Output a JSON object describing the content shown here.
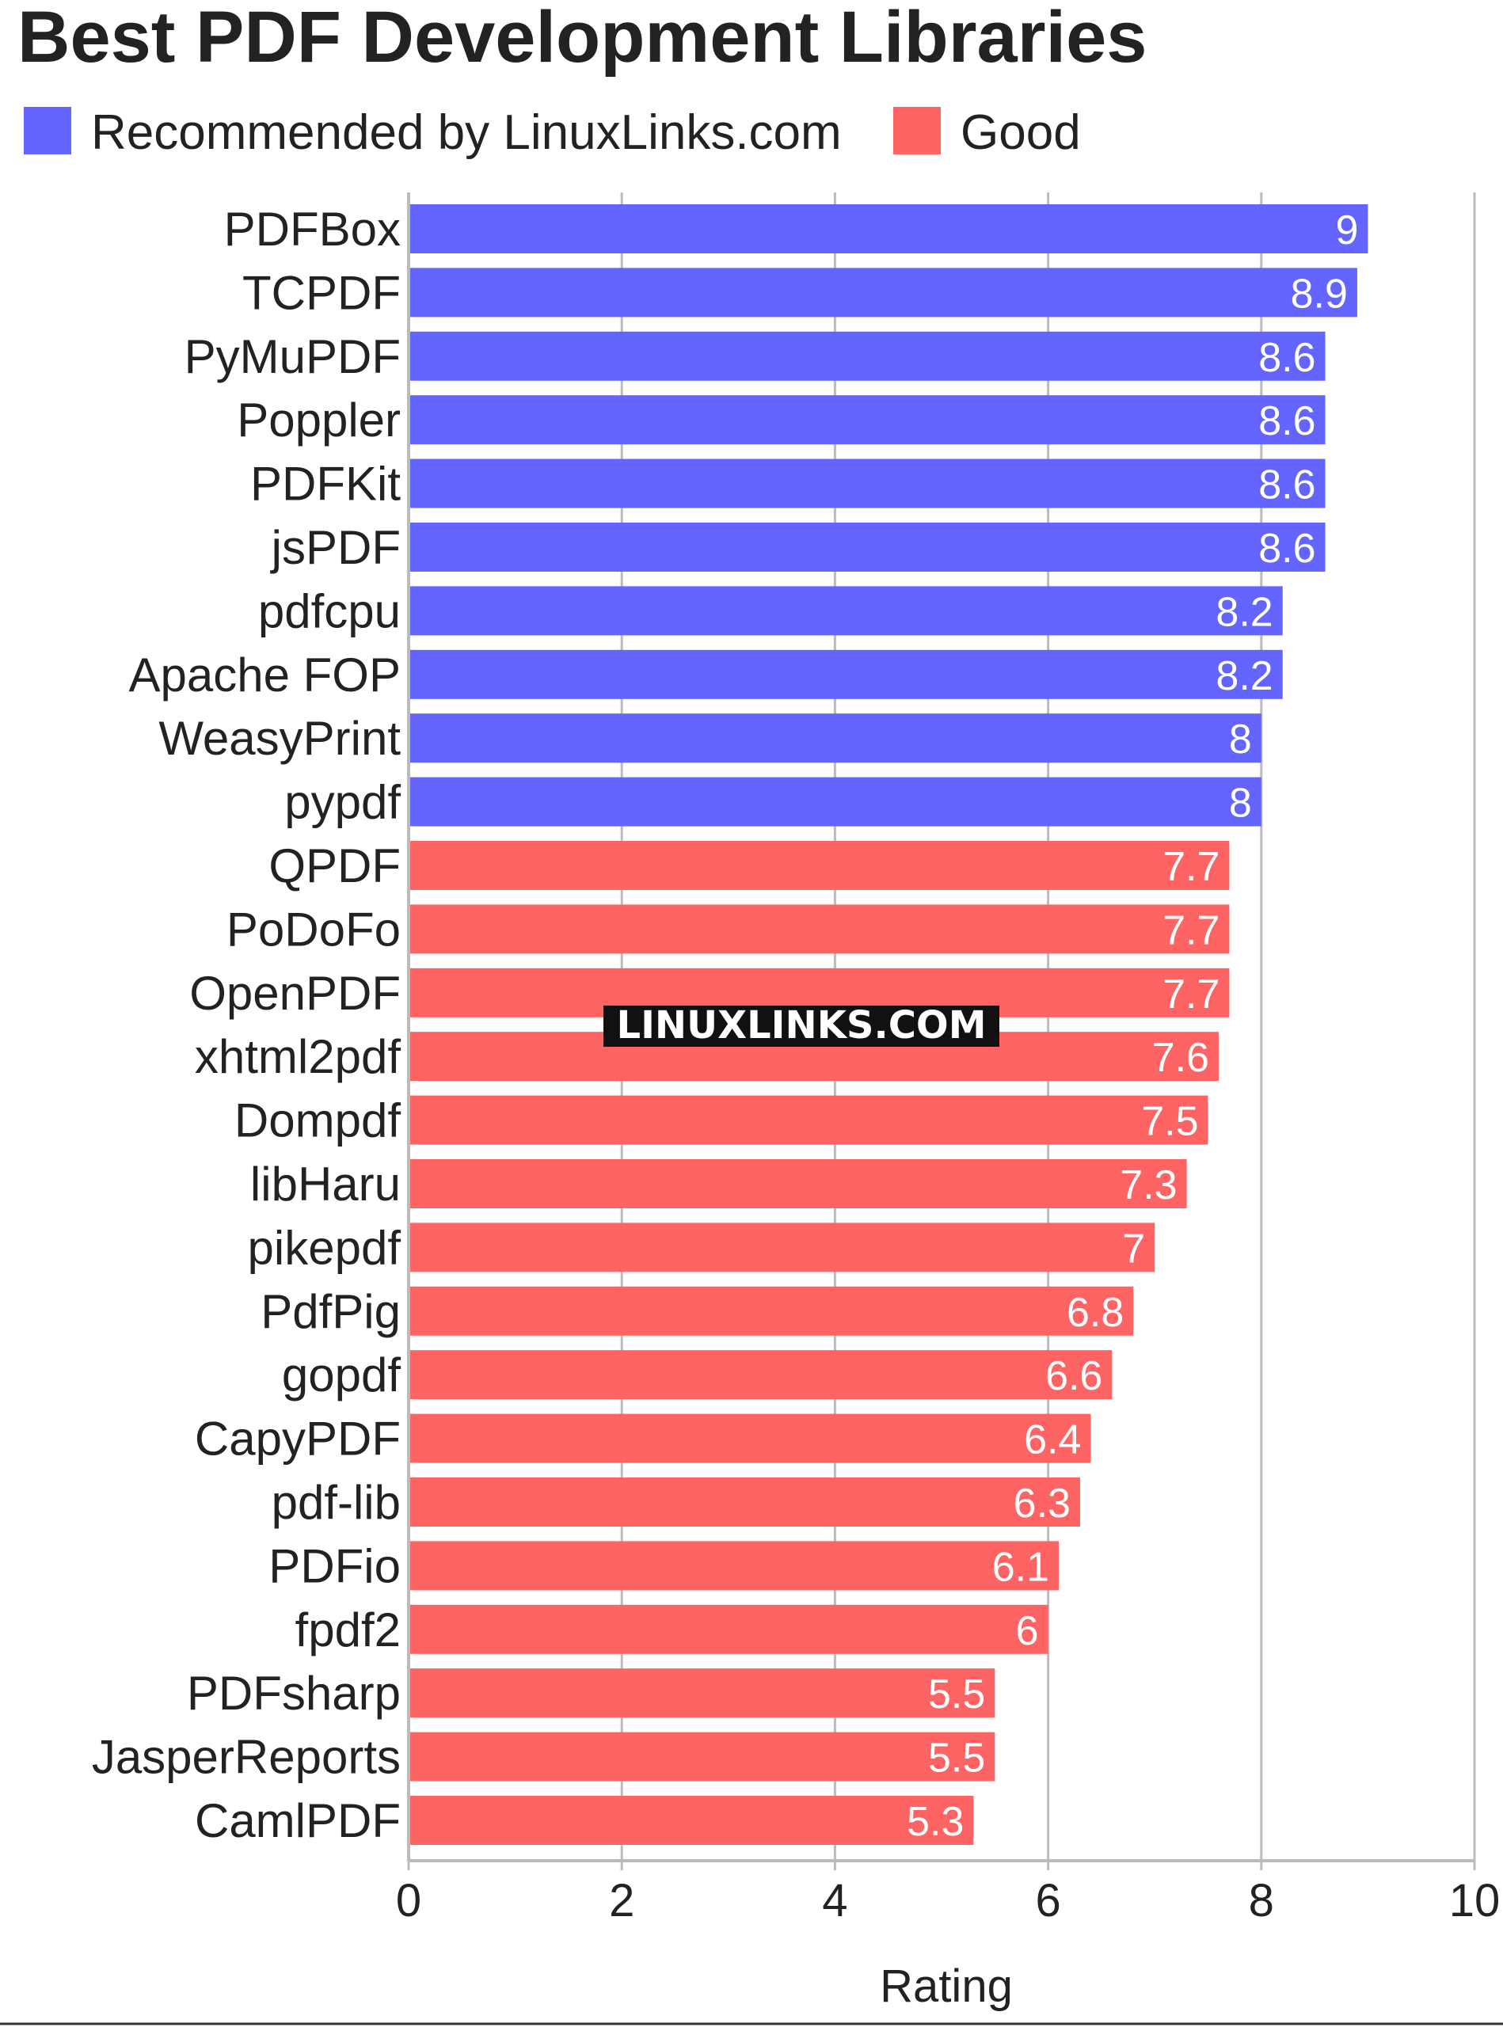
{
  "chart_data": {
    "type": "bar",
    "orientation": "horizontal",
    "title": "Best PDF Development Libraries",
    "xlabel": "Rating",
    "ylabel": "",
    "xlim": [
      0,
      10
    ],
    "ticks": [
      "0",
      "2",
      "4",
      "6",
      "8",
      "10"
    ],
    "grid": true,
    "legend_position": "top-left",
    "watermark": "LINUXLINKS.COM",
    "series": [
      {
        "name": "Recommended by LinuxLinks.com",
        "color": "#6464ff"
      },
      {
        "name": "Good",
        "color": "#ff6464"
      }
    ],
    "categories": [
      "PDFBox",
      "TCPDF",
      "PyMuPDF",
      "Poppler",
      "PDFKit",
      "jsPDF",
      "pdfcpu",
      "Apache FOP",
      "WeasyPrint",
      "pypdf",
      "QPDF",
      "PoDoFo",
      "OpenPDF",
      "xhtml2pdf",
      "Dompdf",
      "libHaru",
      "pikepdf",
      "PdfPig",
      "gopdf",
      "CapyPDF",
      "pdf-lib",
      "PDFio",
      "fpdf2",
      "PDFsharp",
      "JasperReports",
      "CamlPDF"
    ],
    "values": [
      9,
      8.9,
      8.6,
      8.6,
      8.6,
      8.6,
      8.2,
      8.2,
      8,
      8,
      7.7,
      7.7,
      7.7,
      7.6,
      7.5,
      7.3,
      7,
      6.8,
      6.6,
      6.4,
      6.3,
      6.1,
      6,
      5.5,
      5.5,
      5.3
    ],
    "value_labels": [
      "9",
      "8.9",
      "8.6",
      "8.6",
      "8.6",
      "8.6",
      "8.2",
      "8.2",
      "8",
      "8",
      "7.7",
      "7.7",
      "7.7",
      "7.6",
      "7.5",
      "7.3",
      "7",
      "6.8",
      "6.6",
      "6.4",
      "6.3",
      "6.1",
      "6",
      "5.5",
      "5.5",
      "5.3"
    ],
    "groups": [
      0,
      0,
      0,
      0,
      0,
      0,
      0,
      0,
      0,
      0,
      1,
      1,
      1,
      1,
      1,
      1,
      1,
      1,
      1,
      1,
      1,
      1,
      1,
      1,
      1,
      1
    ]
  }
}
